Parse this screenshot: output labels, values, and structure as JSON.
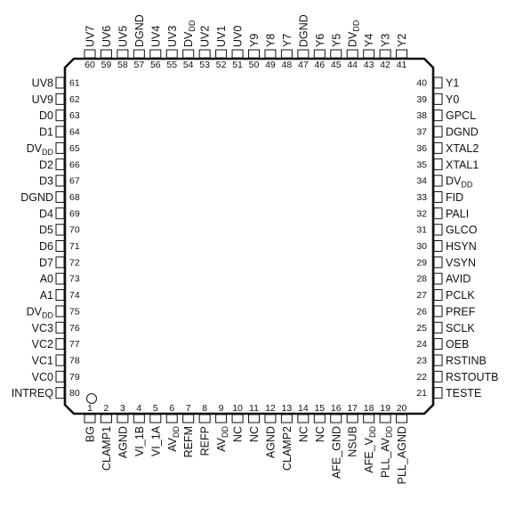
{
  "package": {
    "left": [
      {
        "num": "61",
        "name": "UV8"
      },
      {
        "num": "62",
        "name": "UV9"
      },
      {
        "num": "63",
        "name": "D0"
      },
      {
        "num": "64",
        "name": "D1"
      },
      {
        "num": "65",
        "name": "DV",
        "sub": "DD"
      },
      {
        "num": "66",
        "name": "D2"
      },
      {
        "num": "67",
        "name": "D3"
      },
      {
        "num": "68",
        "name": "DGND"
      },
      {
        "num": "69",
        "name": "D4"
      },
      {
        "num": "70",
        "name": "D5"
      },
      {
        "num": "71",
        "name": "D6"
      },
      {
        "num": "72",
        "name": "D7"
      },
      {
        "num": "73",
        "name": "A0"
      },
      {
        "num": "74",
        "name": "A1"
      },
      {
        "num": "75",
        "name": "DV",
        "sub": "DD"
      },
      {
        "num": "76",
        "name": "VC3"
      },
      {
        "num": "77",
        "name": "VC2"
      },
      {
        "num": "78",
        "name": "VC1"
      },
      {
        "num": "79",
        "name": "VC0"
      },
      {
        "num": "80",
        "name": "INTREQ"
      }
    ],
    "right": [
      {
        "num": "40",
        "name": "Y1"
      },
      {
        "num": "39",
        "name": "Y0"
      },
      {
        "num": "38",
        "name": "GPCL"
      },
      {
        "num": "37",
        "name": "DGND"
      },
      {
        "num": "36",
        "name": "XTAL2"
      },
      {
        "num": "35",
        "name": "XTAL1"
      },
      {
        "num": "34",
        "name": "DV",
        "sub": "DD"
      },
      {
        "num": "33",
        "name": "FID"
      },
      {
        "num": "32",
        "name": "PALI"
      },
      {
        "num": "31",
        "name": "GLCO"
      },
      {
        "num": "30",
        "name": "HSYN"
      },
      {
        "num": "29",
        "name": "VSYN"
      },
      {
        "num": "28",
        "name": "AVID"
      },
      {
        "num": "27",
        "name": "PCLK"
      },
      {
        "num": "26",
        "name": "PREF"
      },
      {
        "num": "25",
        "name": "SCLK"
      },
      {
        "num": "24",
        "name": "OEB"
      },
      {
        "num": "23",
        "name": "RSTINB"
      },
      {
        "num": "22",
        "name": "RSTOUTB"
      },
      {
        "num": "21",
        "name": "TESTE"
      }
    ],
    "top": [
      {
        "num": "60",
        "name": "UV7"
      },
      {
        "num": "59",
        "name": "UV6"
      },
      {
        "num": "58",
        "name": "UV5"
      },
      {
        "num": "57",
        "name": "DGND"
      },
      {
        "num": "56",
        "name": "UV4"
      },
      {
        "num": "55",
        "name": "UV3"
      },
      {
        "num": "54",
        "name": "DV",
        "sub": "DD"
      },
      {
        "num": "53",
        "name": "UV2"
      },
      {
        "num": "52",
        "name": "UV1"
      },
      {
        "num": "51",
        "name": "UV0"
      },
      {
        "num": "50",
        "name": "Y9"
      },
      {
        "num": "49",
        "name": "Y8"
      },
      {
        "num": "48",
        "name": "Y7"
      },
      {
        "num": "47",
        "name": "DGND"
      },
      {
        "num": "46",
        "name": "Y6"
      },
      {
        "num": "45",
        "name": "Y5"
      },
      {
        "num": "44",
        "name": "DV",
        "sub": "DD"
      },
      {
        "num": "43",
        "name": "Y4"
      },
      {
        "num": "42",
        "name": "Y3"
      },
      {
        "num": "41",
        "name": "Y2"
      }
    ],
    "bottom": [
      {
        "num": "1",
        "name": "BG"
      },
      {
        "num": "2",
        "name": "CLAMP1"
      },
      {
        "num": "3",
        "name": "AGND"
      },
      {
        "num": "4",
        "name": "VI_1B"
      },
      {
        "num": "5",
        "name": "VI_1A"
      },
      {
        "num": "6",
        "name": "AV",
        "sub": "DD"
      },
      {
        "num": "7",
        "name": "REFM"
      },
      {
        "num": "8",
        "name": "REFP"
      },
      {
        "num": "9",
        "name": "AV",
        "sub": "DD"
      },
      {
        "num": "10",
        "name": "NC"
      },
      {
        "num": "11",
        "name": "NC"
      },
      {
        "num": "12",
        "name": "AGND"
      },
      {
        "num": "13",
        "name": "CLAMP2"
      },
      {
        "num": "14",
        "name": "NC"
      },
      {
        "num": "15",
        "name": "NC"
      },
      {
        "num": "16",
        "name": "AFE_GND"
      },
      {
        "num": "17",
        "name": "NSUB"
      },
      {
        "num": "18",
        "name": "AFE_V",
        "sub": "DD"
      },
      {
        "num": "19",
        "name": "PLL_AV",
        "sub": "DD"
      },
      {
        "num": "20",
        "name": "PLL_AGND"
      }
    ]
  }
}
